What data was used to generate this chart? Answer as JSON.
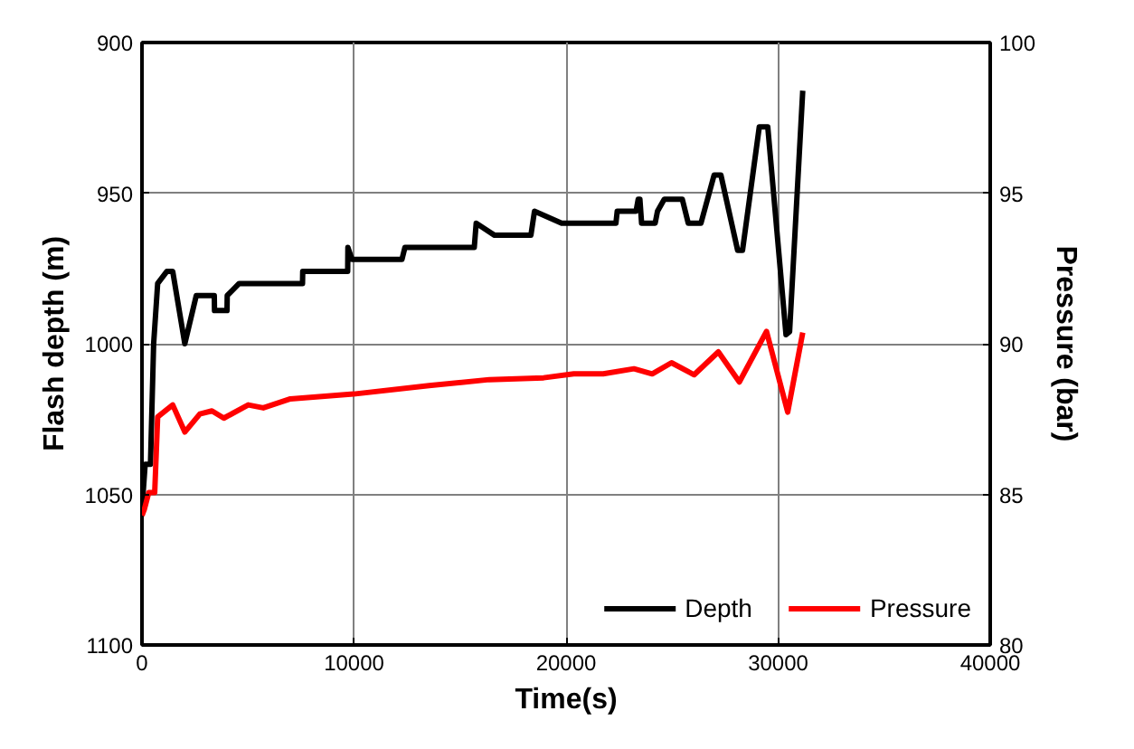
{
  "chart_data": {
    "type": "line",
    "xlabel": "Time(s)",
    "ylabel": "Flash depth (m)",
    "y2label": "Pressure (bar)",
    "xlim": [
      0,
      40000
    ],
    "xticks": [
      0,
      10000,
      20000,
      30000,
      40000
    ],
    "ylim": [
      1100,
      900
    ],
    "yticks": [
      900,
      950,
      1000,
      1050,
      1100
    ],
    "y2lim": [
      80,
      100
    ],
    "y2ticks": [
      80,
      85,
      90,
      95,
      100
    ],
    "grid": true,
    "legend": "bottom right",
    "line_style": "solid",
    "series": [
      {
        "name": "Depth",
        "color": "#000000",
        "x": [
          0,
          150,
          400,
          550,
          740,
          1170,
          1450,
          2020,
          2560,
          3410,
          3420,
          4010,
          4020,
          4580,
          7570,
          7580,
          9700,
          9710,
          9900,
          12260,
          12400,
          15670,
          15760,
          16630,
          18340,
          18510,
          19790,
          22350,
          22410,
          23300,
          23400,
          23480,
          23560,
          24200,
          24310,
          24630,
          25480,
          25760,
          26360,
          26980,
          27300,
          28090,
          28320,
          29110,
          29510,
          30370,
          30540,
          31160
        ],
        "values": [
          1055,
          1040,
          1040,
          1000,
          980,
          976,
          976,
          1000,
          984,
          984,
          989,
          989,
          984,
          980,
          980,
          976,
          976,
          968,
          972,
          972,
          968,
          968,
          960,
          964,
          964,
          956,
          960,
          960,
          956,
          956,
          952,
          952,
          960,
          960,
          956,
          952,
          952,
          960,
          960,
          944,
          944,
          969,
          969,
          928,
          928,
          997,
          996,
          916
        ]
      },
      {
        "name": "Pressure",
        "color": "#ff0000",
        "axis": "y2",
        "x": [
          0,
          110,
          320,
          600,
          740,
          1450,
          2020,
          2730,
          3300,
          3860,
          5010,
          5720,
          7000,
          9980,
          13540,
          16380,
          18940,
          20360,
          21750,
          23200,
          24060,
          24970,
          26040,
          27180,
          28170,
          29450,
          30450,
          31160
        ],
        "values": [
          84.3,
          84.5,
          85.06,
          85.06,
          87.57,
          87.97,
          87.07,
          87.67,
          87.77,
          87.53,
          87.97,
          87.87,
          88.17,
          88.33,
          88.61,
          88.81,
          88.87,
          89.0,
          89.0,
          89.17,
          89.0,
          89.37,
          88.97,
          89.73,
          88.73,
          90.41,
          87.73,
          90.37
        ]
      }
    ]
  }
}
